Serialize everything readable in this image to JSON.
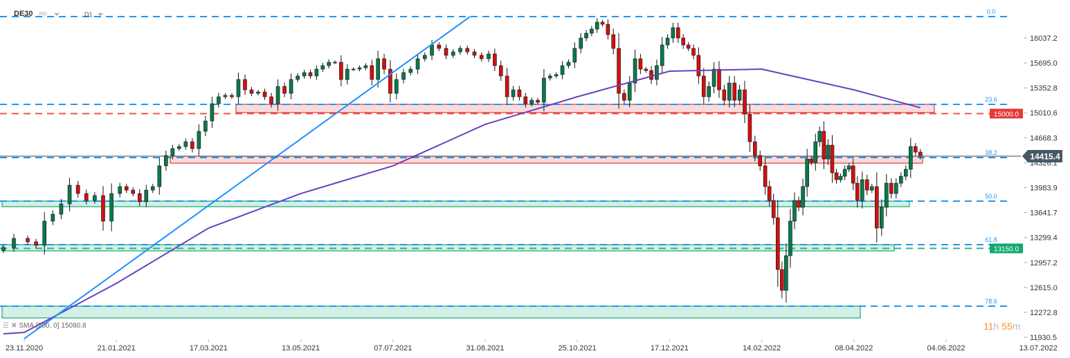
{
  "header": {
    "symbol": "DE30",
    "instrument_type": "IND",
    "timeframe": "D1"
  },
  "legend": {
    "indicator": "SMA",
    "params": "[200,  0]",
    "value": "15080.8"
  },
  "timer": {
    "hours": "11",
    "h_unit": "h",
    "minutes": "55",
    "m_unit": "m"
  },
  "colors": {
    "bull": "#0a7a4a",
    "bear": "#d40f0f",
    "fib": "#2196f3",
    "sma": "#6a3fc2",
    "trend": "#1e90ff",
    "resistance": "#e53935",
    "support": "#13a870",
    "price_label": "#455a64"
  },
  "chart_data": {
    "type": "candlestick",
    "title": "",
    "y_ticks": [
      "16037.2",
      "15695.0",
      "15352.8",
      "15010.6",
      "14668.3",
      "14326.1",
      "13983.9",
      "13641.7",
      "13299.4",
      "12957.2",
      "12615.0",
      "12272.8",
      "11930.5"
    ],
    "ylim": [
      11930.5,
      16331
    ],
    "x_ticks": [
      "23.11.2020",
      "21.01.2021",
      "17.03.2021",
      "13.05.2021",
      "07.07.2021",
      "31.08.2021",
      "25.10.2021",
      "17.12.2021",
      "14.02.2022",
      "08.04.2022",
      "04.06.2022",
      "13.07.2022"
    ],
    "close_segments": [
      {
        "before": "23.11.2020",
        "closes": [
          13163,
          13287
        ]
      },
      {
        "from": "23.11.2020",
        "to": "21.01.2021",
        "closes": [
          13240,
          13192,
          13524,
          13619,
          13761,
          14017,
          13903,
          13808,
          13875,
          13524,
          13903
        ]
      },
      {
        "from": "21.01.2021",
        "to": "17.03.2021",
        "closes": [
          13998,
          13950,
          13903,
          13790,
          13950,
          13998,
          14283,
          14425,
          14520,
          14548,
          14614,
          14520,
          14757,
          14899
        ]
      },
      {
        "from": "17.03.2021",
        "to": "13.05.2021",
        "closes": [
          15136,
          15231,
          15250,
          15231,
          15468,
          15326,
          15278,
          15297,
          15231,
          15136,
          15373,
          15278,
          15468,
          15516
        ]
      },
      {
        "from": "13.05.2021",
        "to": "07.07.2021",
        "closes": [
          15563,
          15516,
          15610,
          15658,
          15705,
          15705,
          15468,
          15610,
          15610,
          15629,
          15658,
          15468,
          15753,
          15610,
          15278
        ]
      },
      {
        "from": "07.07.2021",
        "to": "31.08.2021",
        "closes": [
          15468,
          15563,
          15610,
          15753,
          15800,
          15942,
          15895,
          15800,
          15847,
          15895,
          15847,
          15800,
          15753
        ]
      },
      {
        "from": "31.08.2021",
        "to": "25.10.2021",
        "closes": [
          15819,
          15658,
          15516,
          15231,
          15326,
          15231,
          15136,
          15183,
          15155,
          15487,
          15516,
          15535,
          15658,
          15705,
          15895
        ]
      },
      {
        "from": "25.10.2021",
        "to": "17.12.2021",
        "closes": [
          16037,
          16103,
          16160,
          16255,
          16226,
          16084,
          15895,
          15278,
          15183,
          15420,
          15753,
          15610,
          15591,
          15468,
          15658,
          15942,
          16037
        ]
      },
      {
        "from": "17.12.2021",
        "to": "14.02.2022",
        "closes": [
          16179,
          16037,
          15942,
          15895,
          15800,
          15516,
          15231,
          15373,
          15610,
          15326,
          15183,
          15420,
          15183,
          15326,
          14994,
          14614,
          14425,
          14283
        ]
      },
      {
        "from": "14.02.2022",
        "to": "08.04.2022",
        "closes": [
          13998,
          13808,
          13571,
          12860,
          12575,
          13050,
          13524,
          13808,
          13714,
          13998,
          14377,
          14330,
          14614,
          14757,
          14377,
          14567,
          14188,
          14093,
          14140,
          14236,
          14283,
          14045
        ]
      },
      {
        "from": "08.04.2022",
        "closes": [
          13808,
          14093,
          13950,
          13998,
          13429,
          13714,
          14045,
          13903,
          14045,
          14140,
          14236,
          14548,
          14472,
          14415.4
        ]
      }
    ],
    "current_price": "14415.4",
    "sma_200": {
      "start": 11978,
      "at_x_ticks": [
        11997,
        12670,
        13429,
        13903,
        14283,
        14852,
        15231,
        15582,
        15610,
        15326
      ],
      "last": 15080.8
    },
    "trend_line": {
      "start": [
        "23.11.2020",
        11911
      ],
      "end": [
        "22.08.2021",
        16331
      ]
    },
    "fib_levels": [
      {
        "label": "0.0",
        "price": 16331
      },
      {
        "label": "23.6",
        "price": 15127
      },
      {
        "label": "38.2",
        "price": 14396
      },
      {
        "label": "50.0",
        "price": 13799
      },
      {
        "label": "61.8",
        "price": 13201
      },
      {
        "label": "78.6",
        "price": 12357
      }
    ],
    "levels": [
      {
        "label": "15000.0",
        "price": 15000,
        "kind": "resistance"
      },
      {
        "label": "13150.0",
        "price": 13150,
        "kind": "support"
      }
    ],
    "zones": [
      {
        "kind": "resistance",
        "top": 15127,
        "bottom": 15014
      },
      {
        "kind": "resistance",
        "top": 14415,
        "bottom": 14320
      },
      {
        "kind": "support",
        "top": 13799,
        "bottom": 13723
      },
      {
        "kind": "support",
        "top": 13201,
        "bottom": 13116
      },
      {
        "kind": "support",
        "top": 12357,
        "bottom": 12196
      }
    ]
  }
}
